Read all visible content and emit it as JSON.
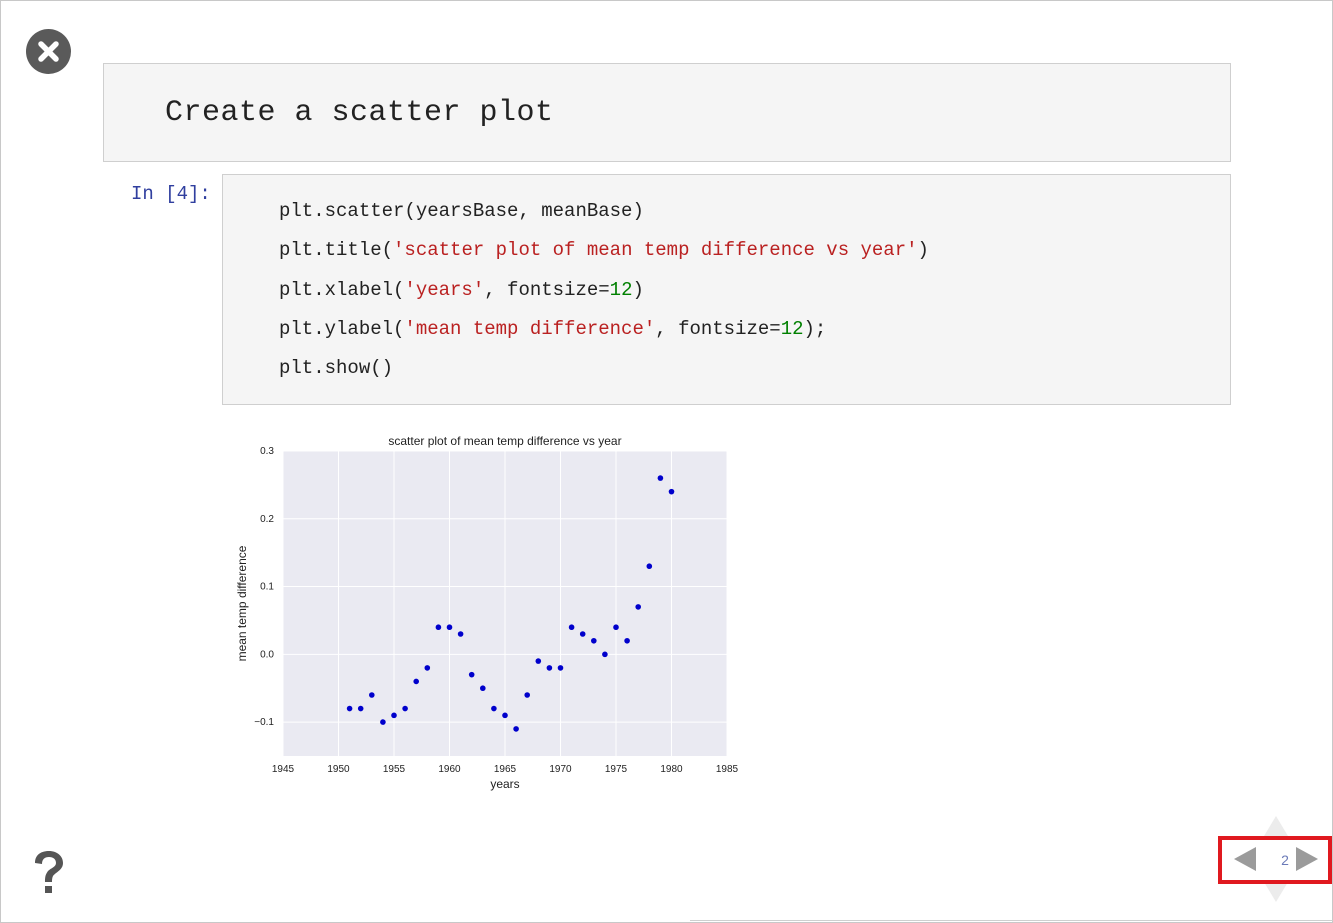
{
  "slide": {
    "heading": "Create a scatter plot",
    "slide_number": "2"
  },
  "cell": {
    "prompt": "In [4]:",
    "code": {
      "l1": "plt.scatter(yearsBase, meanBase)",
      "l2_pre": "plt.title(",
      "l2_str": "'scatter plot of mean temp difference vs year'",
      "l2_post": ")",
      "l3_pre": "plt.xlabel(",
      "l3_str": "'years'",
      "l3_mid": ", fontsize=",
      "l3_num": "12",
      "l3_post": ")",
      "l4_pre": "plt.ylabel(",
      "l4_str": "'mean temp difference'",
      "l4_mid": ", fontsize=",
      "l4_num": "12",
      "l4_post": ");",
      "l5": "plt.show()"
    }
  },
  "icons": {
    "close": "close-icon",
    "help": "question-mark-icon",
    "prev": "arrow-left-icon",
    "next": "arrow-right-icon",
    "up": "arrow-up-icon",
    "down": "arrow-down-icon"
  },
  "colors": {
    "marker": "#0000cc",
    "plot_bg": "#eaeaf2",
    "nav_highlight": "#e0191f",
    "string": "#ba2121",
    "number": "#008000",
    "prompt": "#303f9f"
  },
  "chart_data": {
    "type": "scatter",
    "title": "scatter plot of mean temp difference vs year",
    "xlabel": "years",
    "ylabel": "mean temp difference",
    "xlim": [
      1945,
      1985
    ],
    "ylim": [
      -0.15,
      0.3
    ],
    "xticks": [
      1945,
      1950,
      1955,
      1960,
      1965,
      1970,
      1975,
      1980,
      1985
    ],
    "yticks": [
      -0.1,
      0.0,
      0.1,
      0.2,
      0.3
    ],
    "ytick_labels": [
      "−0.1",
      "0.0",
      "0.1",
      "0.2",
      "0.3"
    ],
    "grid": true,
    "x": [
      1951,
      1952,
      1953,
      1954,
      1955,
      1956,
      1957,
      1958,
      1959,
      1960,
      1961,
      1962,
      1963,
      1964,
      1965,
      1966,
      1967,
      1968,
      1969,
      1970,
      1971,
      1972,
      1973,
      1974,
      1975,
      1976,
      1977,
      1978,
      1979,
      1980
    ],
    "y": [
      -0.08,
      -0.08,
      -0.06,
      -0.1,
      -0.09,
      -0.08,
      -0.04,
      -0.02,
      0.04,
      0.04,
      0.03,
      -0.03,
      -0.05,
      -0.08,
      -0.09,
      -0.11,
      -0.06,
      -0.01,
      -0.02,
      -0.02,
      0.04,
      0.03,
      0.02,
      0.0,
      0.04,
      0.02,
      0.07,
      0.13,
      0.26,
      0.24
    ]
  }
}
